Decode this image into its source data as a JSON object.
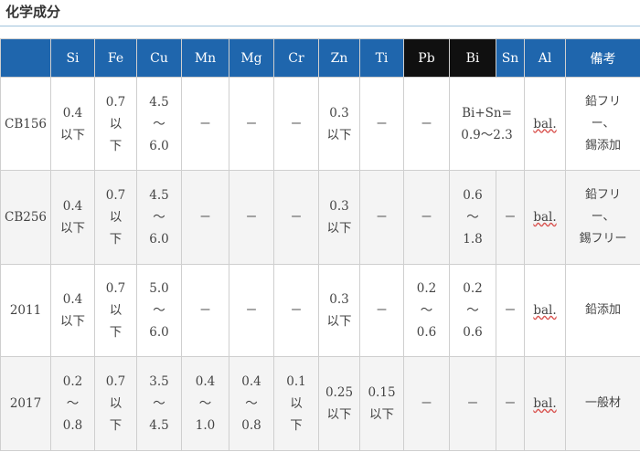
{
  "page": {
    "title": "化学成分"
  },
  "table": {
    "headers": [
      "",
      "Si",
      "Fe",
      "Cu",
      "Mn",
      "Mg",
      "Cr",
      "Zn",
      "Ti",
      "Pb",
      "Bi",
      "Sn",
      "Al",
      "備考"
    ],
    "rows": [
      {
        "name": "CB156",
        "si": [
          "0.4",
          "以下"
        ],
        "fe": [
          "0.7",
          "以",
          "下"
        ],
        "cu": [
          "4.5",
          "～",
          "6.0"
        ],
        "mn": "－",
        "mg": "－",
        "cr": "－",
        "zn": [
          "0.3",
          "以下"
        ],
        "ti": "－",
        "pb": "－",
        "bisn": [
          "Bi+Sn=",
          "0.9～2.3"
        ],
        "al": "bal.",
        "note": [
          "鉛フリ",
          "ー、",
          "錫添加"
        ]
      },
      {
        "name": "CB256",
        "si": [
          "0.4",
          "以下"
        ],
        "fe": [
          "0.7",
          "以",
          "下"
        ],
        "cu": [
          "4.5",
          "～",
          "6.0"
        ],
        "mn": "－",
        "mg": "－",
        "cr": "－",
        "zn": [
          "0.3",
          "以下"
        ],
        "ti": "－",
        "pb": "－",
        "bi": [
          "0.6",
          "～",
          "1.8"
        ],
        "sn": "－",
        "al": "bal.",
        "note": [
          "鉛フリ",
          "ー、",
          "錫フリー"
        ]
      },
      {
        "name": "2011",
        "si": [
          "0.4",
          "以下"
        ],
        "fe": [
          "0.7",
          "以",
          "下"
        ],
        "cu": [
          "5.0",
          "～",
          "6.0"
        ],
        "mn": "－",
        "mg": "－",
        "cr": "－",
        "zn": [
          "0.3",
          "以下"
        ],
        "ti": "－",
        "pb": [
          "0.2",
          "～",
          "0.6"
        ],
        "bi": [
          "0.2",
          "～",
          "0.6"
        ],
        "sn": "－",
        "al": "bal.",
        "note": "鉛添加"
      },
      {
        "name": "2017",
        "si": [
          "0.2",
          "～",
          "0.8"
        ],
        "fe": [
          "0.7",
          "以",
          "下"
        ],
        "cu": [
          "3.5",
          "～",
          "4.5"
        ],
        "mn": [
          "0.4",
          "～",
          "1.0"
        ],
        "mg": [
          "0.4",
          "～",
          "0.8"
        ],
        "cr": [
          "0.1",
          "以",
          "下"
        ],
        "zn": [
          "0.25",
          "以下"
        ],
        "ti": [
          "0.15",
          "以下"
        ],
        "pb": "－",
        "bi": "－",
        "sn": "－",
        "al": "bal.",
        "note": "一般材"
      }
    ]
  }
}
